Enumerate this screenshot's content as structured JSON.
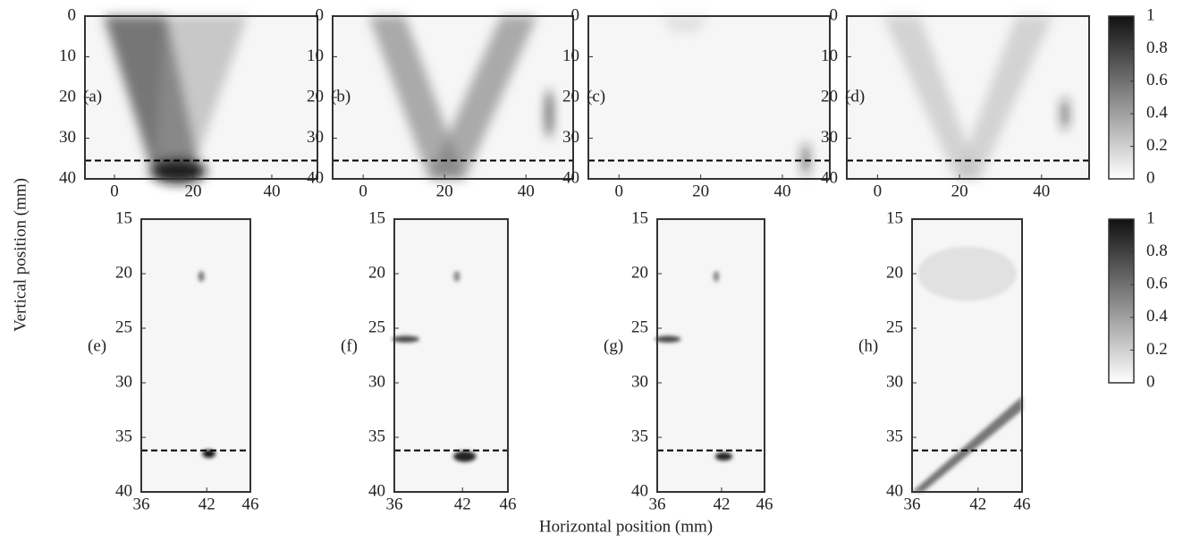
{
  "xlabel": "Horizontal position (mm)",
  "ylabel": "Vertical position (mm)",
  "colorbars": [
    {
      "ylim": [
        0,
        1
      ],
      "yticks": [
        0,
        0.2,
        0.4,
        0.6,
        0.8,
        1
      ]
    },
    {
      "ylim": [
        0,
        1
      ],
      "yticks": [
        0,
        0.2,
        0.4,
        0.6,
        0.8,
        1
      ]
    }
  ],
  "chart_data": [
    {
      "type": "heatmap",
      "label": "(a)",
      "xlim": [
        -7.5,
        51.6
      ],
      "xticks": [
        0,
        20,
        40
      ],
      "ylim": [
        0,
        40
      ],
      "yticks": [
        0,
        10,
        20,
        30,
        40
      ],
      "reference_line": 35.5
    },
    {
      "type": "heatmap",
      "label": "(b)",
      "xlim": [
        -7.5,
        51.6
      ],
      "xticks": [
        0,
        20,
        40
      ],
      "ylim": [
        0,
        40
      ],
      "yticks": [
        0,
        10,
        20,
        30,
        40
      ],
      "reference_line": 35.5
    },
    {
      "type": "heatmap",
      "label": "(c)",
      "xlim": [
        -7.5,
        51.6
      ],
      "xticks": [
        0,
        20,
        40
      ],
      "ylim": [
        0,
        40
      ],
      "yticks": [
        0,
        10,
        20,
        30,
        40
      ],
      "reference_line": 35.5
    },
    {
      "type": "heatmap",
      "label": "(d)",
      "xlim": [
        -7.5,
        51.6
      ],
      "xticks": [
        0,
        20,
        40
      ],
      "ylim": [
        0,
        40
      ],
      "yticks": [
        0,
        10,
        20,
        30,
        40
      ],
      "reference_line": 35.5
    },
    {
      "type": "heatmap",
      "label": "(e)",
      "xlim": [
        36,
        46
      ],
      "xticks": [
        36,
        42,
        46
      ],
      "ylim": [
        15,
        40
      ],
      "yticks": [
        15,
        20,
        25,
        30,
        35,
        40
      ],
      "reference_line": 36.2
    },
    {
      "type": "heatmap",
      "label": "(f)",
      "xlim": [
        36,
        46
      ],
      "xticks": [
        36,
        42,
        46
      ],
      "ylim": [
        15,
        40
      ],
      "yticks": [
        15,
        20,
        25,
        30,
        35,
        40
      ],
      "reference_line": 36.2
    },
    {
      "type": "heatmap",
      "label": "(g)",
      "xlim": [
        36,
        46
      ],
      "xticks": [
        36,
        42,
        46
      ],
      "ylim": [
        15,
        40
      ],
      "yticks": [
        15,
        20,
        25,
        30,
        35,
        40
      ],
      "reference_line": 36.2
    },
    {
      "type": "heatmap",
      "label": "(h)",
      "xlim": [
        36,
        46
      ],
      "xticks": [
        36,
        42,
        46
      ],
      "ylim": [
        15,
        40
      ],
      "yticks": [
        15,
        20,
        25,
        30,
        35,
        40
      ],
      "reference_line": 36.2
    }
  ]
}
